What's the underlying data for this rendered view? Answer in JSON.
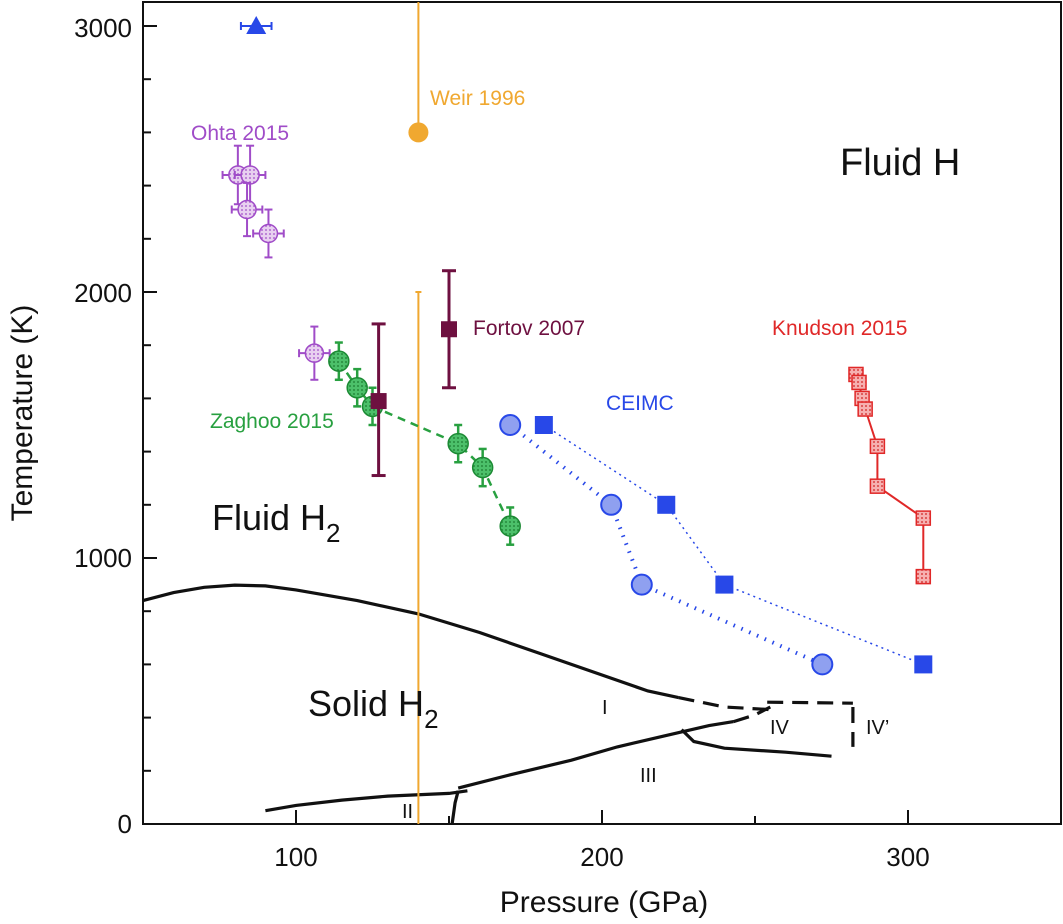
{
  "chart_data": {
    "type": "scatter",
    "xlabel": "Pressure (GPa)",
    "ylabel": "Temperature (K)",
    "xlim": [
      50,
      350
    ],
    "ylim": [
      0,
      3100
    ],
    "x_ticks": [
      100,
      200,
      300
    ],
    "y_ticks": [
      0,
      1000,
      2000,
      3000
    ],
    "colors": {
      "ohta": "#a04cc8",
      "weir": "#f0a830",
      "fortov": "#6e1040",
      "zaghoo": "#28a040",
      "ceimc": "#2848e8",
      "knudson": "#e02828",
      "phase": "#111111"
    },
    "series": [
      {
        "name": "Ohta 2015",
        "marker": "circle-hatched",
        "points": [
          {
            "x": 81,
            "y": 2440,
            "xerr": 5,
            "yerr": 110
          },
          {
            "x": 85,
            "y": 2440,
            "xerr": 5,
            "yerr": 110
          },
          {
            "x": 84,
            "y": 2310,
            "xerr": 5,
            "yerr": 100
          },
          {
            "x": 91,
            "y": 2220,
            "xerr": 5,
            "yerr": 90
          },
          {
            "x": 106,
            "y": 1770,
            "xerr": 5,
            "yerr": 100
          }
        ]
      },
      {
        "name": "Weir 1996",
        "marker": "circle",
        "points": [
          {
            "x": 140,
            "y": 2600,
            "yerr_low": 600,
            "yerr_high": 600
          }
        ]
      },
      {
        "name": "Fortov 2007",
        "marker": "square",
        "points": [
          {
            "x": 127,
            "y": 1590,
            "yerr_low": 280,
            "yerr_high": 290
          },
          {
            "x": 150,
            "y": 1860,
            "yerr_low": 220,
            "yerr_high": 220
          }
        ]
      },
      {
        "name": "Zaghoo 2015",
        "marker": "circle-dashed-line",
        "points": [
          {
            "x": 114,
            "y": 1740,
            "yerr": 70
          },
          {
            "x": 120,
            "y": 1640,
            "yerr": 70
          },
          {
            "x": 125,
            "y": 1570,
            "yerr": 70
          },
          {
            "x": 153,
            "y": 1430,
            "yerr": 70
          },
          {
            "x": 161,
            "y": 1340,
            "yerr": 70
          },
          {
            "x": 170,
            "y": 1120,
            "yerr": 70
          }
        ]
      },
      {
        "name": "CEIMC circles",
        "marker": "circle-dotted-line",
        "points": [
          {
            "x": 170,
            "y": 1500
          },
          {
            "x": 203,
            "y": 1200
          },
          {
            "x": 213,
            "y": 900
          },
          {
            "x": 272,
            "y": 600
          }
        ]
      },
      {
        "name": "CEIMC squares",
        "marker": "square-dotted-line",
        "points": [
          {
            "x": 181,
            "y": 1500
          },
          {
            "x": 221,
            "y": 1200
          },
          {
            "x": 240,
            "y": 900
          },
          {
            "x": 305,
            "y": 600
          }
        ]
      },
      {
        "name": "CEIMC triangle",
        "marker": "triangle",
        "points": [
          {
            "x": 87,
            "y": 3000,
            "xerr": 5
          }
        ]
      },
      {
        "name": "Knudson 2015",
        "marker": "square-hatched-line",
        "points": [
          {
            "x": 283,
            "y": 1690
          },
          {
            "x": 284,
            "y": 1660
          },
          {
            "x": 285,
            "y": 1600
          },
          {
            "x": 286,
            "y": 1560
          },
          {
            "x": 290,
            "y": 1420
          },
          {
            "x": 290,
            "y": 1270
          },
          {
            "x": 305,
            "y": 1150
          },
          {
            "x": 305,
            "y": 930
          }
        ]
      }
    ],
    "phase_boundaries": [
      {
        "name": "melting line",
        "style": "solid",
        "points": [
          [
            50,
            840
          ],
          [
            60,
            870
          ],
          [
            70,
            890
          ],
          [
            80,
            898
          ],
          [
            90,
            895
          ],
          [
            100,
            880
          ],
          [
            120,
            840
          ],
          [
            140,
            790
          ],
          [
            160,
            720
          ],
          [
            180,
            640
          ],
          [
            200,
            560
          ],
          [
            215,
            500
          ],
          [
            225,
            475
          ]
        ]
      },
      {
        "name": "melting line extrapolated",
        "style": "dashed",
        "points": [
          [
            225,
            475
          ],
          [
            240,
            440
          ],
          [
            255,
            430
          ]
        ]
      },
      {
        "name": "IV upper boundary",
        "style": "dashed",
        "points": [
          [
            254,
            458
          ],
          [
            270,
            456
          ],
          [
            282,
            454
          ]
        ]
      },
      {
        "name": "IV-IV' boundary",
        "style": "dashed",
        "points": [
          [
            282,
            440
          ],
          [
            282,
            290
          ]
        ]
      },
      {
        "name": "I-III boundary",
        "style": "solid",
        "points": [
          [
            153,
            135
          ],
          [
            170,
            185
          ],
          [
            190,
            240
          ],
          [
            205,
            290
          ],
          [
            220,
            330
          ],
          [
            235,
            370
          ],
          [
            243,
            385
          ]
        ]
      },
      {
        "name": "I-IV boundary",
        "style": "dashed",
        "points": [
          [
            243,
            385
          ],
          [
            250,
            410
          ],
          [
            255,
            440
          ]
        ]
      },
      {
        "name": "III-IV boundary",
        "style": "solid",
        "points": [
          [
            226,
            355
          ],
          [
            230,
            310
          ],
          [
            240,
            285
          ],
          [
            260,
            270
          ],
          [
            275,
            255
          ]
        ]
      },
      {
        "name": "I-II boundary",
        "style": "solid",
        "points": [
          [
            90,
            50
          ],
          [
            100,
            70
          ],
          [
            115,
            90
          ],
          [
            130,
            105
          ],
          [
            150,
            115
          ],
          [
            156,
            125
          ]
        ]
      },
      {
        "name": "II-III boundary",
        "style": "solid",
        "points": [
          [
            151,
            0
          ],
          [
            152,
            80
          ],
          [
            153,
            125
          ]
        ]
      }
    ],
    "annotations": {
      "fluid_h": "Fluid H",
      "fluid_h2_main": "Fluid H",
      "fluid_h2_sub": "2",
      "solid_h2_main": "Solid H",
      "solid_h2_sub": "2",
      "ceimc": "CEIMC",
      "phase_i": "I",
      "phase_ii": "II",
      "phase_iii": "III",
      "phase_iv": "IV",
      "phase_iv_prime": "IV’"
    }
  }
}
